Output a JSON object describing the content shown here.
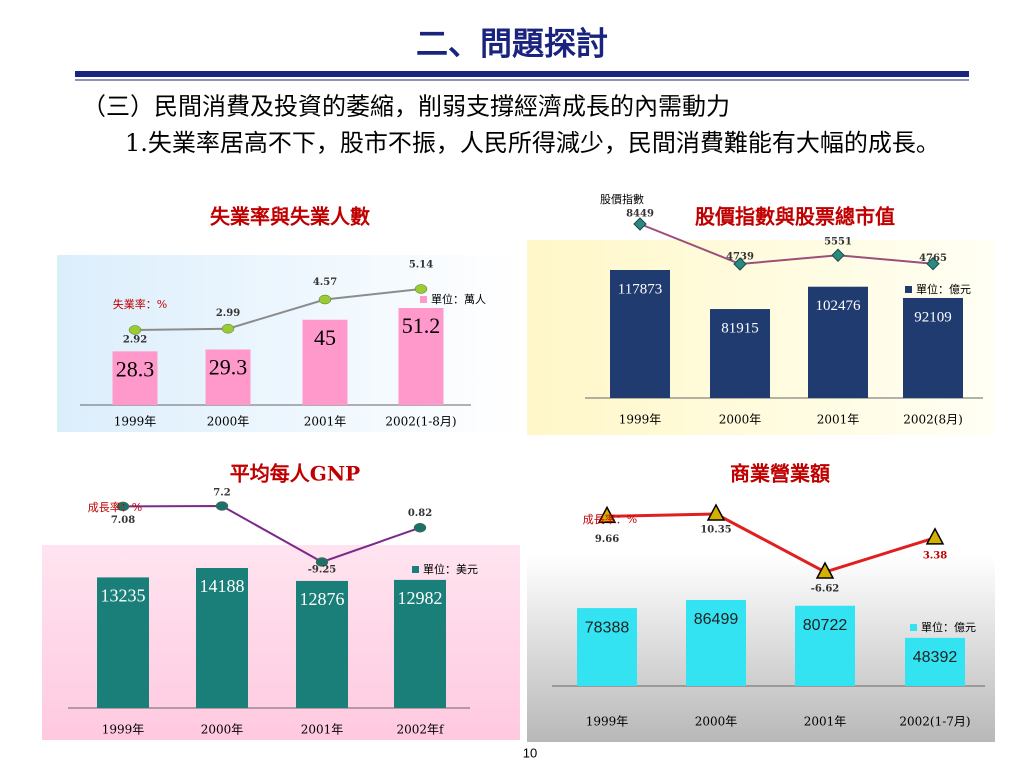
{
  "title": "二、問題探討",
  "heading": "（三）民間消費及投資的萎縮，削弱支撐經濟成長的內需動力",
  "point": "1.失業率居高不下，股市不振，人民所得減少，民間消費難能有大幅的成長。",
  "page_number": "10",
  "chart_data": [
    {
      "type": "combo",
      "title": "失業率與失業人數",
      "categories": [
        "1999年",
        "2000年",
        "2001年",
        "2002(1-8月)"
      ],
      "series": [
        {
          "type": "bar",
          "name": "單位：萬人",
          "color": "#ff99cc",
          "values": [
            28.3,
            29.3,
            45,
            51.2
          ]
        },
        {
          "type": "line",
          "name": "失業率：%",
          "color": "#8c8c8c",
          "marker": "circle",
          "marker_color": "#99cc33",
          "values": [
            2.92,
            2.99,
            4.57,
            5.14
          ]
        }
      ]
    },
    {
      "type": "combo",
      "title": "股價指數與股票總市值",
      "categories": [
        "1999年",
        "2000年",
        "2001年",
        "2002(8月)"
      ],
      "series": [
        {
          "type": "bar",
          "name": "單位：億元",
          "color": "#1f3b6f",
          "values": [
            117873,
            81915,
            102476,
            92109
          ]
        },
        {
          "type": "line",
          "name": "股價指數",
          "color": "#9b4f7a",
          "marker": "diamond",
          "marker_color": "#2a8a80",
          "values": [
            8449,
            4739,
            5551,
            4765
          ]
        }
      ]
    },
    {
      "type": "combo",
      "title": "平均每人GNP",
      "categories": [
        "1999年",
        "2000年",
        "2001年",
        "2002年f"
      ],
      "series": [
        {
          "type": "bar",
          "name": "單位：美元",
          "color": "#1a7f78",
          "values": [
            13235,
            14188,
            12876,
            12982
          ]
        },
        {
          "type": "line",
          "name": "成長率：%",
          "color": "#7b2a8a",
          "marker": "circle",
          "marker_color": "#1f6f6a",
          "values": [
            7.08,
            7.2,
            -9.25,
            0.82
          ]
        }
      ]
    },
    {
      "type": "combo",
      "title": "商業營業額",
      "categories": [
        "1999年",
        "2000年",
        "2001年",
        "2002(1-7月)"
      ],
      "series": [
        {
          "type": "bar",
          "name": "單位：億元",
          "color": "#33e3f2",
          "values": [
            78388,
            86499,
            80722,
            48392
          ]
        },
        {
          "type": "line",
          "name": "成長率：%",
          "color": "#e02020",
          "marker": "triangle",
          "marker_color": "#d4b000",
          "values": [
            9.66,
            10.35,
            -6.62,
            3.38
          ]
        }
      ]
    }
  ]
}
